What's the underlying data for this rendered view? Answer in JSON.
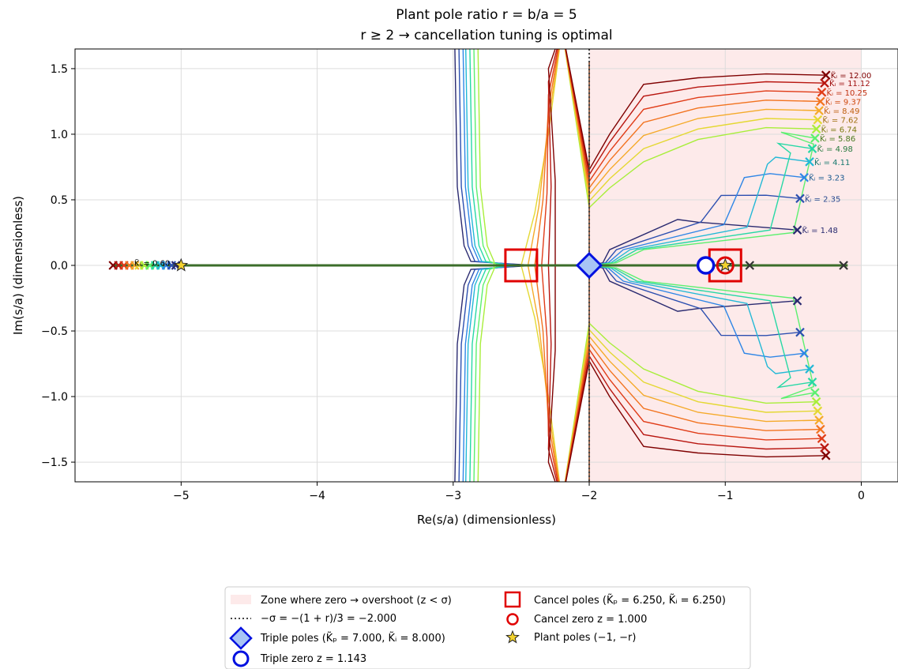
{
  "chart_data": {
    "type": "scatter",
    "title": "Plant pole ratio r = b/a = 5",
    "subtitle": "r ≥ 2  →  cancellation tuning is optimal",
    "xlabel": "Re(s/a)   (dimensionless)",
    "ylabel": "Im(s/a)   (dimensionless)",
    "xlim": [
      -5.78,
      0.27
    ],
    "ylim": [
      -1.65,
      1.65
    ],
    "x_ticks": [
      -5,
      -4,
      -3,
      -2,
      -1,
      0
    ],
    "y_ticks": [
      -1.5,
      -1.0,
      -0.5,
      0.0,
      0.5,
      1.0,
      1.5
    ],
    "x_tick_labels": [
      "−5",
      "−4",
      "−3",
      "−2",
      "−1",
      "0"
    ],
    "y_tick_labels": [
      "−1.5",
      "−1.0",
      "−0.5",
      "0.0",
      "0.5",
      "1.0",
      "1.5"
    ],
    "grid": true,
    "shaded_zone": {
      "x_from": -2.0,
      "x_to": 0.0,
      "color": "#fdeaea"
    },
    "sigma_line": -2.0,
    "plant_poles": [
      -1,
      -5
    ],
    "triple_pole": {
      "x": -2.0,
      "y": 0.0
    },
    "triple_zero": {
      "x": -1.143,
      "y": 0.0
    },
    "cancel_poles": [
      {
        "x": -2.5,
        "y": 0.0
      },
      {
        "x": -1.0,
        "y": 0.0
      }
    ],
    "cancel_zero": {
      "x": -1.0,
      "y": 0.0
    },
    "ki_labels": [
      {
        "text": "K̃ᵢ = 12.00",
        "x": -0.26,
        "y": 1.45,
        "color": "#7f0000"
      },
      {
        "text": "K̃ᵢ = 11.12",
        "x": -0.27,
        "y": 1.39,
        "color": "#a01010"
      },
      {
        "text": "K̃ᵢ = 10.25",
        "x": -0.29,
        "y": 1.32,
        "color": "#c03010"
      },
      {
        "text": "K̃ᵢ = 9.37",
        "x": -0.3,
        "y": 1.25,
        "color": "#d04a10"
      },
      {
        "text": "K̃ᵢ = 8.49",
        "x": -0.31,
        "y": 1.18,
        "color": "#c06010"
      },
      {
        "text": "K̃ᵢ = 7.62",
        "x": -0.32,
        "y": 1.11,
        "color": "#a07010"
      },
      {
        "text": "K̃ᵢ = 6.74",
        "x": -0.33,
        "y": 1.04,
        "color": "#7a7a10"
      },
      {
        "text": "K̃ᵢ = 5.86",
        "x": -0.34,
        "y": 0.97,
        "color": "#4a7a20"
      },
      {
        "text": "K̃ᵢ = 4.98",
        "x": -0.36,
        "y": 0.89,
        "color": "#2a7a40"
      },
      {
        "text": "K̃ᵢ = 4.11",
        "x": -0.38,
        "y": 0.79,
        "color": "#1a7a70"
      },
      {
        "text": "K̃ᵢ = 3.23",
        "x": -0.42,
        "y": 0.67,
        "color": "#1a5a90"
      },
      {
        "text": "K̃ᵢ = 2.35",
        "x": -0.45,
        "y": 0.51,
        "color": "#2a4a90"
      },
      {
        "text": "K̃ᵢ = 1.48",
        "x": -0.47,
        "y": 0.27,
        "color": "#2a2a70"
      },
      {
        "text": "K̃ᵢ = 0.60",
        "x": -5.38,
        "y": 0.02,
        "color": "#000000"
      }
    ],
    "upper_endpoints": [
      {
        "x": -0.26,
        "y": 1.45
      },
      {
        "x": -0.27,
        "y": 1.39
      },
      {
        "x": -0.29,
        "y": 1.32
      },
      {
        "x": -0.3,
        "y": 1.25
      },
      {
        "x": -0.31,
        "y": 1.18
      },
      {
        "x": -0.32,
        "y": 1.11
      },
      {
        "x": -0.33,
        "y": 1.04
      },
      {
        "x": -0.34,
        "y": 0.97
      },
      {
        "x": -0.36,
        "y": 0.89
      },
      {
        "x": -0.38,
        "y": 0.79
      },
      {
        "x": -0.42,
        "y": 0.67
      },
      {
        "x": -0.45,
        "y": 0.51
      },
      {
        "x": -0.47,
        "y": 0.27
      }
    ],
    "real_endpoints": [
      -0.13,
      -0.82
    ],
    "left_real_endpoints": [
      -5.5,
      -5.46,
      -5.42,
      -5.38,
      -5.34,
      -5.31,
      -5.27,
      -5.23,
      -5.19,
      -5.15,
      -5.11,
      -5.07,
      -5.04
    ],
    "legend": {
      "zone": "Zone where zero → overshoot  (z < σ)",
      "sigma": "−σ = −(1 + r)/3 = −2.000",
      "triple_poles": "Triple poles  (K̃ₚ = 7.000,  K̃ᵢ = 8.000)",
      "triple_zero": "Triple zero  z = 1.143",
      "cancel_poles": "Cancel poles  (K̃ₚ = 6.250,  K̃ᵢ = 6.250)",
      "cancel_zero": "Cancel zero  z = 1.000",
      "plant_poles": "Plant poles  (−1, −r)"
    }
  }
}
